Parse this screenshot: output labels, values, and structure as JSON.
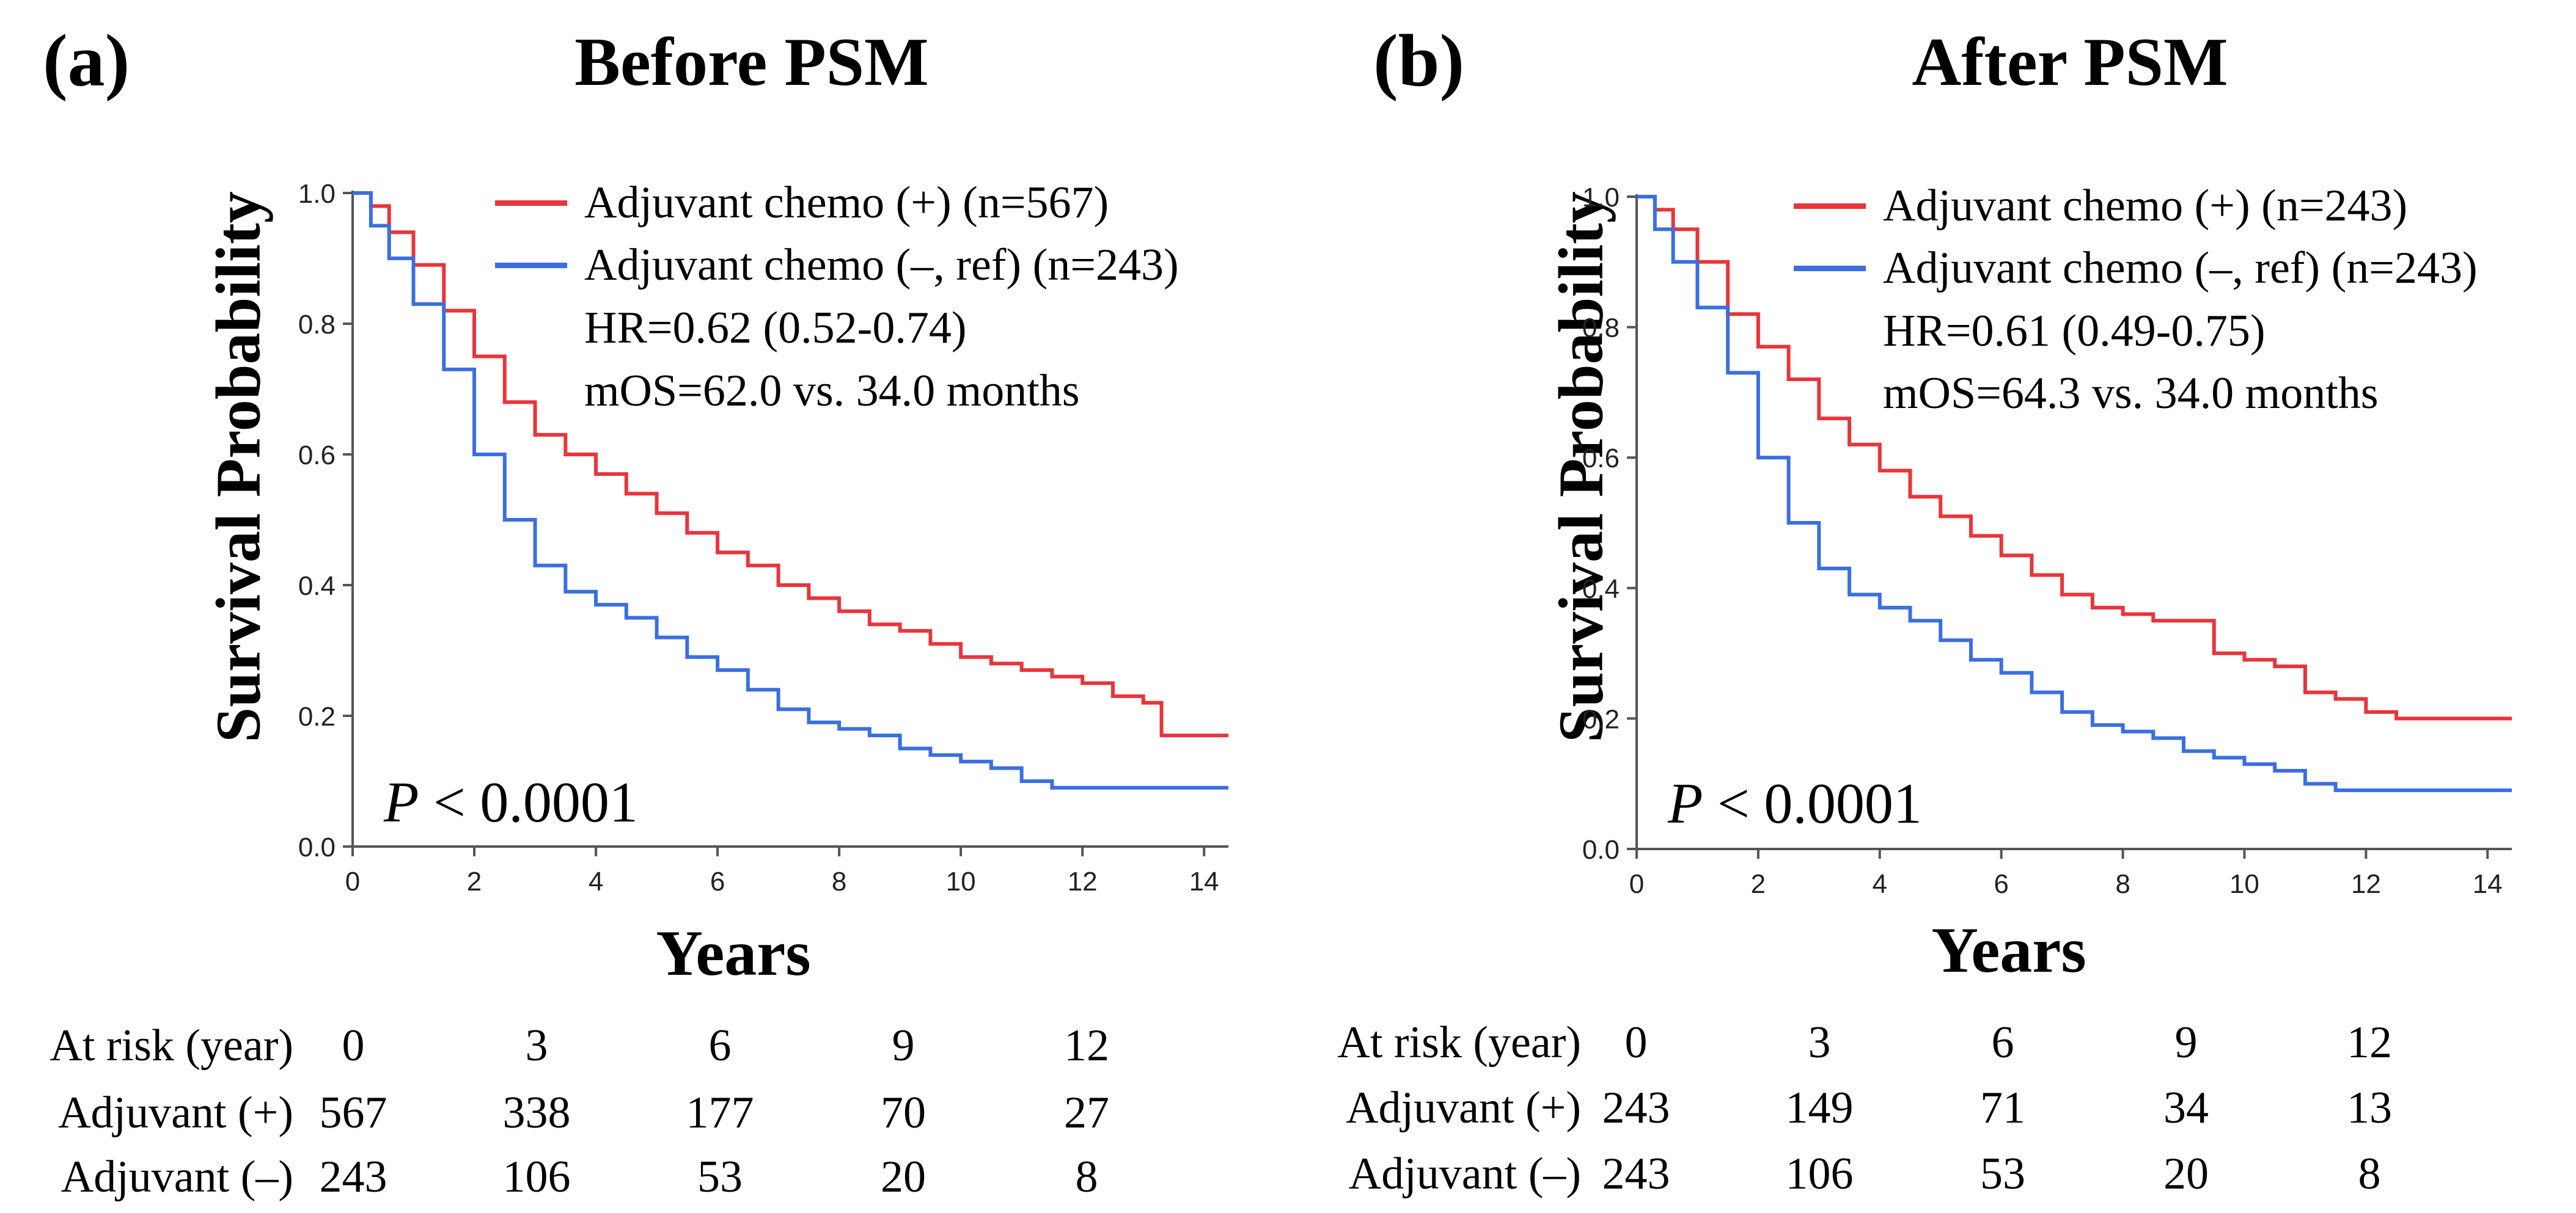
{
  "chart_data": [
    {
      "type": "line",
      "panel_label": "(a)",
      "title": "Before PSM",
      "xlabel": "Years",
      "ylabel": "Survival Probability",
      "xlim": [
        0,
        14.4
      ],
      "ylim": [
        0,
        1.0
      ],
      "xticks": [
        0,
        2,
        4,
        6,
        8,
        10,
        12,
        14
      ],
      "yticks": [
        "0.0",
        "0.2",
        "0.4",
        "0.6",
        "0.8",
        "1.0"
      ],
      "legend": "top-right",
      "series": [
        {
          "name": "Adjuvant chemo (+) (n=567)",
          "color": "#e8353b",
          "x": [
            0,
            0.3,
            0.6,
            1.0,
            1.5,
            2.0,
            2.5,
            3.0,
            3.5,
            4.0,
            4.5,
            5.0,
            5.5,
            6.0,
            6.5,
            7.0,
            7.5,
            8.0,
            8.5,
            9.0,
            9.5,
            10.0,
            10.5,
            11.0,
            11.5,
            12.0,
            12.5,
            13.0,
            13.3,
            13.5,
            14.4
          ],
          "y": [
            1.0,
            0.98,
            0.94,
            0.89,
            0.82,
            0.75,
            0.68,
            0.63,
            0.6,
            0.57,
            0.54,
            0.51,
            0.48,
            0.45,
            0.43,
            0.4,
            0.38,
            0.36,
            0.34,
            0.33,
            0.31,
            0.29,
            0.28,
            0.27,
            0.26,
            0.25,
            0.23,
            0.22,
            0.17,
            0.17,
            0.17
          ]
        },
        {
          "name": "Adjuvant chemo (–, ref) (n=243)",
          "color": "#3b6fe0",
          "x": [
            0,
            0.3,
            0.6,
            1.0,
            1.5,
            2.0,
            2.5,
            3.0,
            3.5,
            4.0,
            4.5,
            5.0,
            5.5,
            6.0,
            6.5,
            7.0,
            7.5,
            8.0,
            8.5,
            9.0,
            9.5,
            10.0,
            10.5,
            11.0,
            11.5,
            12.0,
            13.0,
            14.4
          ],
          "y": [
            1.0,
            0.95,
            0.9,
            0.83,
            0.73,
            0.6,
            0.5,
            0.43,
            0.39,
            0.37,
            0.35,
            0.32,
            0.29,
            0.27,
            0.24,
            0.21,
            0.19,
            0.18,
            0.17,
            0.15,
            0.14,
            0.13,
            0.12,
            0.1,
            0.09,
            0.09,
            0.09,
            0.09
          ]
        }
      ],
      "annotations": {
        "hr": "HR=0.62 (0.52-0.74)",
        "mos": "mOS=62.0 vs. 34.0 months",
        "p_symbol": "P",
        "p_rest": " < 0.0001"
      },
      "risk_table": {
        "header_label": "At risk (year)",
        "years": [
          "0",
          "3",
          "6",
          "9",
          "12"
        ],
        "rows": [
          {
            "label": "Adjuvant (+)",
            "values": [
              "567",
              "338",
              "177",
              "70",
              "27"
            ]
          },
          {
            "label": "Adjuvant (–)",
            "values": [
              "243",
              "106",
              "53",
              "20",
              "8"
            ]
          }
        ]
      }
    },
    {
      "type": "line",
      "panel_label": "(b)",
      "title": "After PSM",
      "xlabel": "Years",
      "ylabel": "Survival Probability",
      "xlim": [
        0,
        14.4
      ],
      "ylim": [
        0,
        1.0
      ],
      "xticks": [
        0,
        2,
        4,
        6,
        8,
        10,
        12,
        14
      ],
      "yticks": [
        "0.0",
        "0.2",
        "0.4",
        "0.6",
        "0.8",
        "1.0"
      ],
      "legend": "top-right",
      "series": [
        {
          "name": "Adjuvant chemo (+) (n=243)",
          "color": "#e8353b",
          "x": [
            0,
            0.3,
            0.6,
            1.0,
            1.5,
            2.0,
            2.5,
            3.0,
            3.5,
            4.0,
            4.5,
            5.0,
            5.5,
            6.0,
            6.5,
            7.0,
            7.5,
            8.0,
            8.5,
            9.0,
            9.5,
            10.0,
            10.5,
            11.0,
            11.5,
            12.0,
            12.5,
            13.0,
            14.4
          ],
          "y": [
            1.0,
            0.98,
            0.95,
            0.9,
            0.82,
            0.77,
            0.72,
            0.66,
            0.62,
            0.58,
            0.54,
            0.51,
            0.48,
            0.45,
            0.42,
            0.39,
            0.37,
            0.36,
            0.35,
            0.35,
            0.3,
            0.29,
            0.28,
            0.24,
            0.23,
            0.21,
            0.2,
            0.2,
            0.2
          ]
        },
        {
          "name": "Adjuvant chemo (–, ref) (n=243)",
          "color": "#3b6fe0",
          "x": [
            0,
            0.3,
            0.6,
            1.0,
            1.5,
            2.0,
            2.5,
            3.0,
            3.5,
            4.0,
            4.5,
            5.0,
            5.5,
            6.0,
            6.5,
            7.0,
            7.5,
            8.0,
            8.5,
            9.0,
            9.5,
            10.0,
            10.5,
            11.0,
            11.5,
            12.0,
            13.0,
            14.4
          ],
          "y": [
            1.0,
            0.95,
            0.9,
            0.83,
            0.73,
            0.6,
            0.5,
            0.43,
            0.39,
            0.37,
            0.35,
            0.32,
            0.29,
            0.27,
            0.24,
            0.21,
            0.19,
            0.18,
            0.17,
            0.15,
            0.14,
            0.13,
            0.12,
            0.1,
            0.09,
            0.09,
            0.09,
            0.09
          ]
        }
      ],
      "annotations": {
        "hr": "HR=0.61 (0.49-0.75)",
        "mos": "mOS=64.3 vs. 34.0 months",
        "p_symbol": "P",
        "p_rest": " < 0.0001"
      },
      "risk_table": {
        "header_label": "At risk (year)",
        "years": [
          "0",
          "3",
          "6",
          "9",
          "12"
        ],
        "rows": [
          {
            "label": "Adjuvant (+)",
            "values": [
              "243",
              "149",
              "71",
              "34",
              "13"
            ]
          },
          {
            "label": "Adjuvant (–)",
            "values": [
              "243",
              "106",
              "53",
              "20",
              "8"
            ]
          }
        ]
      }
    }
  ]
}
